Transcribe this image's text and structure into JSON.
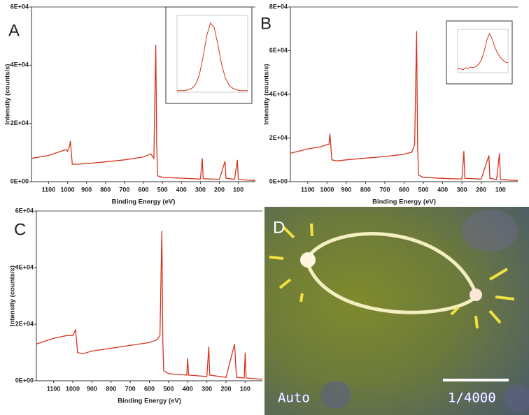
{
  "chart_data": [
    {
      "type": "line",
      "panel_label": "A",
      "x_label": "Binding Energy (eV)",
      "y_label": "Intensity (counts/s)",
      "color": "#d8321e",
      "xlim": [
        1190,
        10
      ],
      "xticks": [
        1100,
        1000,
        900,
        800,
        700,
        600,
        500,
        400,
        300,
        200,
        100
      ],
      "ylim": [
        0,
        60000
      ],
      "yticks": [
        {
          "value": 0,
          "label": "0E+00"
        },
        {
          "value": 20000,
          "label": "2E+04"
        },
        {
          "value": 40000,
          "label": "4E+04"
        },
        {
          "value": 60000,
          "label": "6E+04"
        }
      ],
      "x": [
        1190,
        1100,
        1010,
        1000,
        990,
        985,
        975,
        950,
        900,
        800,
        700,
        600,
        560,
        545,
        535,
        530,
        525,
        500,
        400,
        300,
        290,
        285,
        200,
        170,
        165,
        120,
        105,
        100,
        50,
        10
      ],
      "values": [
        8000,
        9000,
        11000,
        10500,
        12000,
        14000,
        6000,
        6000,
        6200,
        6800,
        7500,
        8500,
        9500,
        8000,
        47000,
        12000,
        2000,
        1500,
        1200,
        900,
        8000,
        1000,
        800,
        7000,
        1200,
        800,
        7500,
        800,
        500,
        400
      ],
      "inset": {
        "values": [
          2,
          2,
          2,
          3,
          5,
          10,
          22,
          45,
          72,
          88,
          82,
          60,
          35,
          18,
          9,
          5,
          3,
          2,
          2,
          2
        ]
      }
    },
    {
      "type": "line",
      "panel_label": "B",
      "x_label": "Binding Energy (eV)",
      "y_label": "Intensity (counts/s)",
      "color": "#d8321e",
      "xlim": [
        1190,
        10
      ],
      "xticks": [
        1100,
        1000,
        900,
        800,
        700,
        600,
        500,
        400,
        300,
        200,
        100
      ],
      "ylim": [
        0,
        80000
      ],
      "yticks": [
        {
          "value": 0,
          "label": "0E+00"
        },
        {
          "value": 20000,
          "label": "2E+04"
        },
        {
          "value": 40000,
          "label": "4E+04"
        },
        {
          "value": 60000,
          "label": "6E+04"
        },
        {
          "value": 80000,
          "label": "8E+04"
        }
      ],
      "x": [
        1190,
        1100,
        1030,
        1000,
        990,
        985,
        975,
        950,
        900,
        800,
        700,
        600,
        560,
        545,
        535,
        530,
        525,
        500,
        400,
        300,
        290,
        285,
        200,
        160,
        155,
        120,
        105,
        100,
        50,
        10
      ],
      "values": [
        13000,
        15000,
        16000,
        17000,
        17000,
        22000,
        10000,
        9500,
        10000,
        10800,
        11500,
        12500,
        13500,
        17000,
        69000,
        16000,
        3000,
        2000,
        1500,
        1200,
        14000,
        1500,
        1200,
        12000,
        1500,
        1000,
        13000,
        1000,
        700,
        500
      ],
      "inset": {
        "values": [
          5,
          6,
          4,
          7,
          6,
          8,
          7,
          9,
          12,
          18,
          30,
          46,
          55,
          48,
          36,
          28,
          22,
          18,
          15,
          14
        ]
      }
    },
    {
      "type": "line",
      "panel_label": "C",
      "x_label": "Binding Energy (eV)",
      "y_label": "Intensity (counts/s)",
      "color": "#d8321e",
      "xlim": [
        1190,
        10
      ],
      "xticks": [
        1100,
        1000,
        900,
        800,
        700,
        600,
        500,
        400,
        300,
        200,
        100
      ],
      "ylim": [
        0,
        60000
      ],
      "yticks": [
        {
          "value": 0,
          "label": "0E+00"
        },
        {
          "value": 20000,
          "label": "2E+04"
        },
        {
          "value": 40000,
          "label": "4E+04"
        },
        {
          "value": 60000,
          "label": "6E+04"
        }
      ],
      "x": [
        1190,
        1100,
        1030,
        1000,
        985,
        975,
        950,
        900,
        800,
        700,
        600,
        560,
        545,
        535,
        530,
        525,
        500,
        405,
        400,
        395,
        300,
        290,
        285,
        200,
        155,
        150,
        145,
        105,
        100,
        95,
        10
      ],
      "values": [
        13000,
        15000,
        16000,
        16000,
        18000,
        10000,
        9500,
        10500,
        11500,
        12500,
        13500,
        14500,
        16000,
        53000,
        14000,
        3500,
        2500,
        2000,
        8000,
        2000,
        1500,
        12000,
        2000,
        1200,
        13000,
        6000,
        1200,
        1000,
        10000,
        1000,
        500
      ]
    }
  ],
  "image": {
    "panel_label": "D",
    "overlay_left": "Auto",
    "overlay_right": "1/4000"
  }
}
